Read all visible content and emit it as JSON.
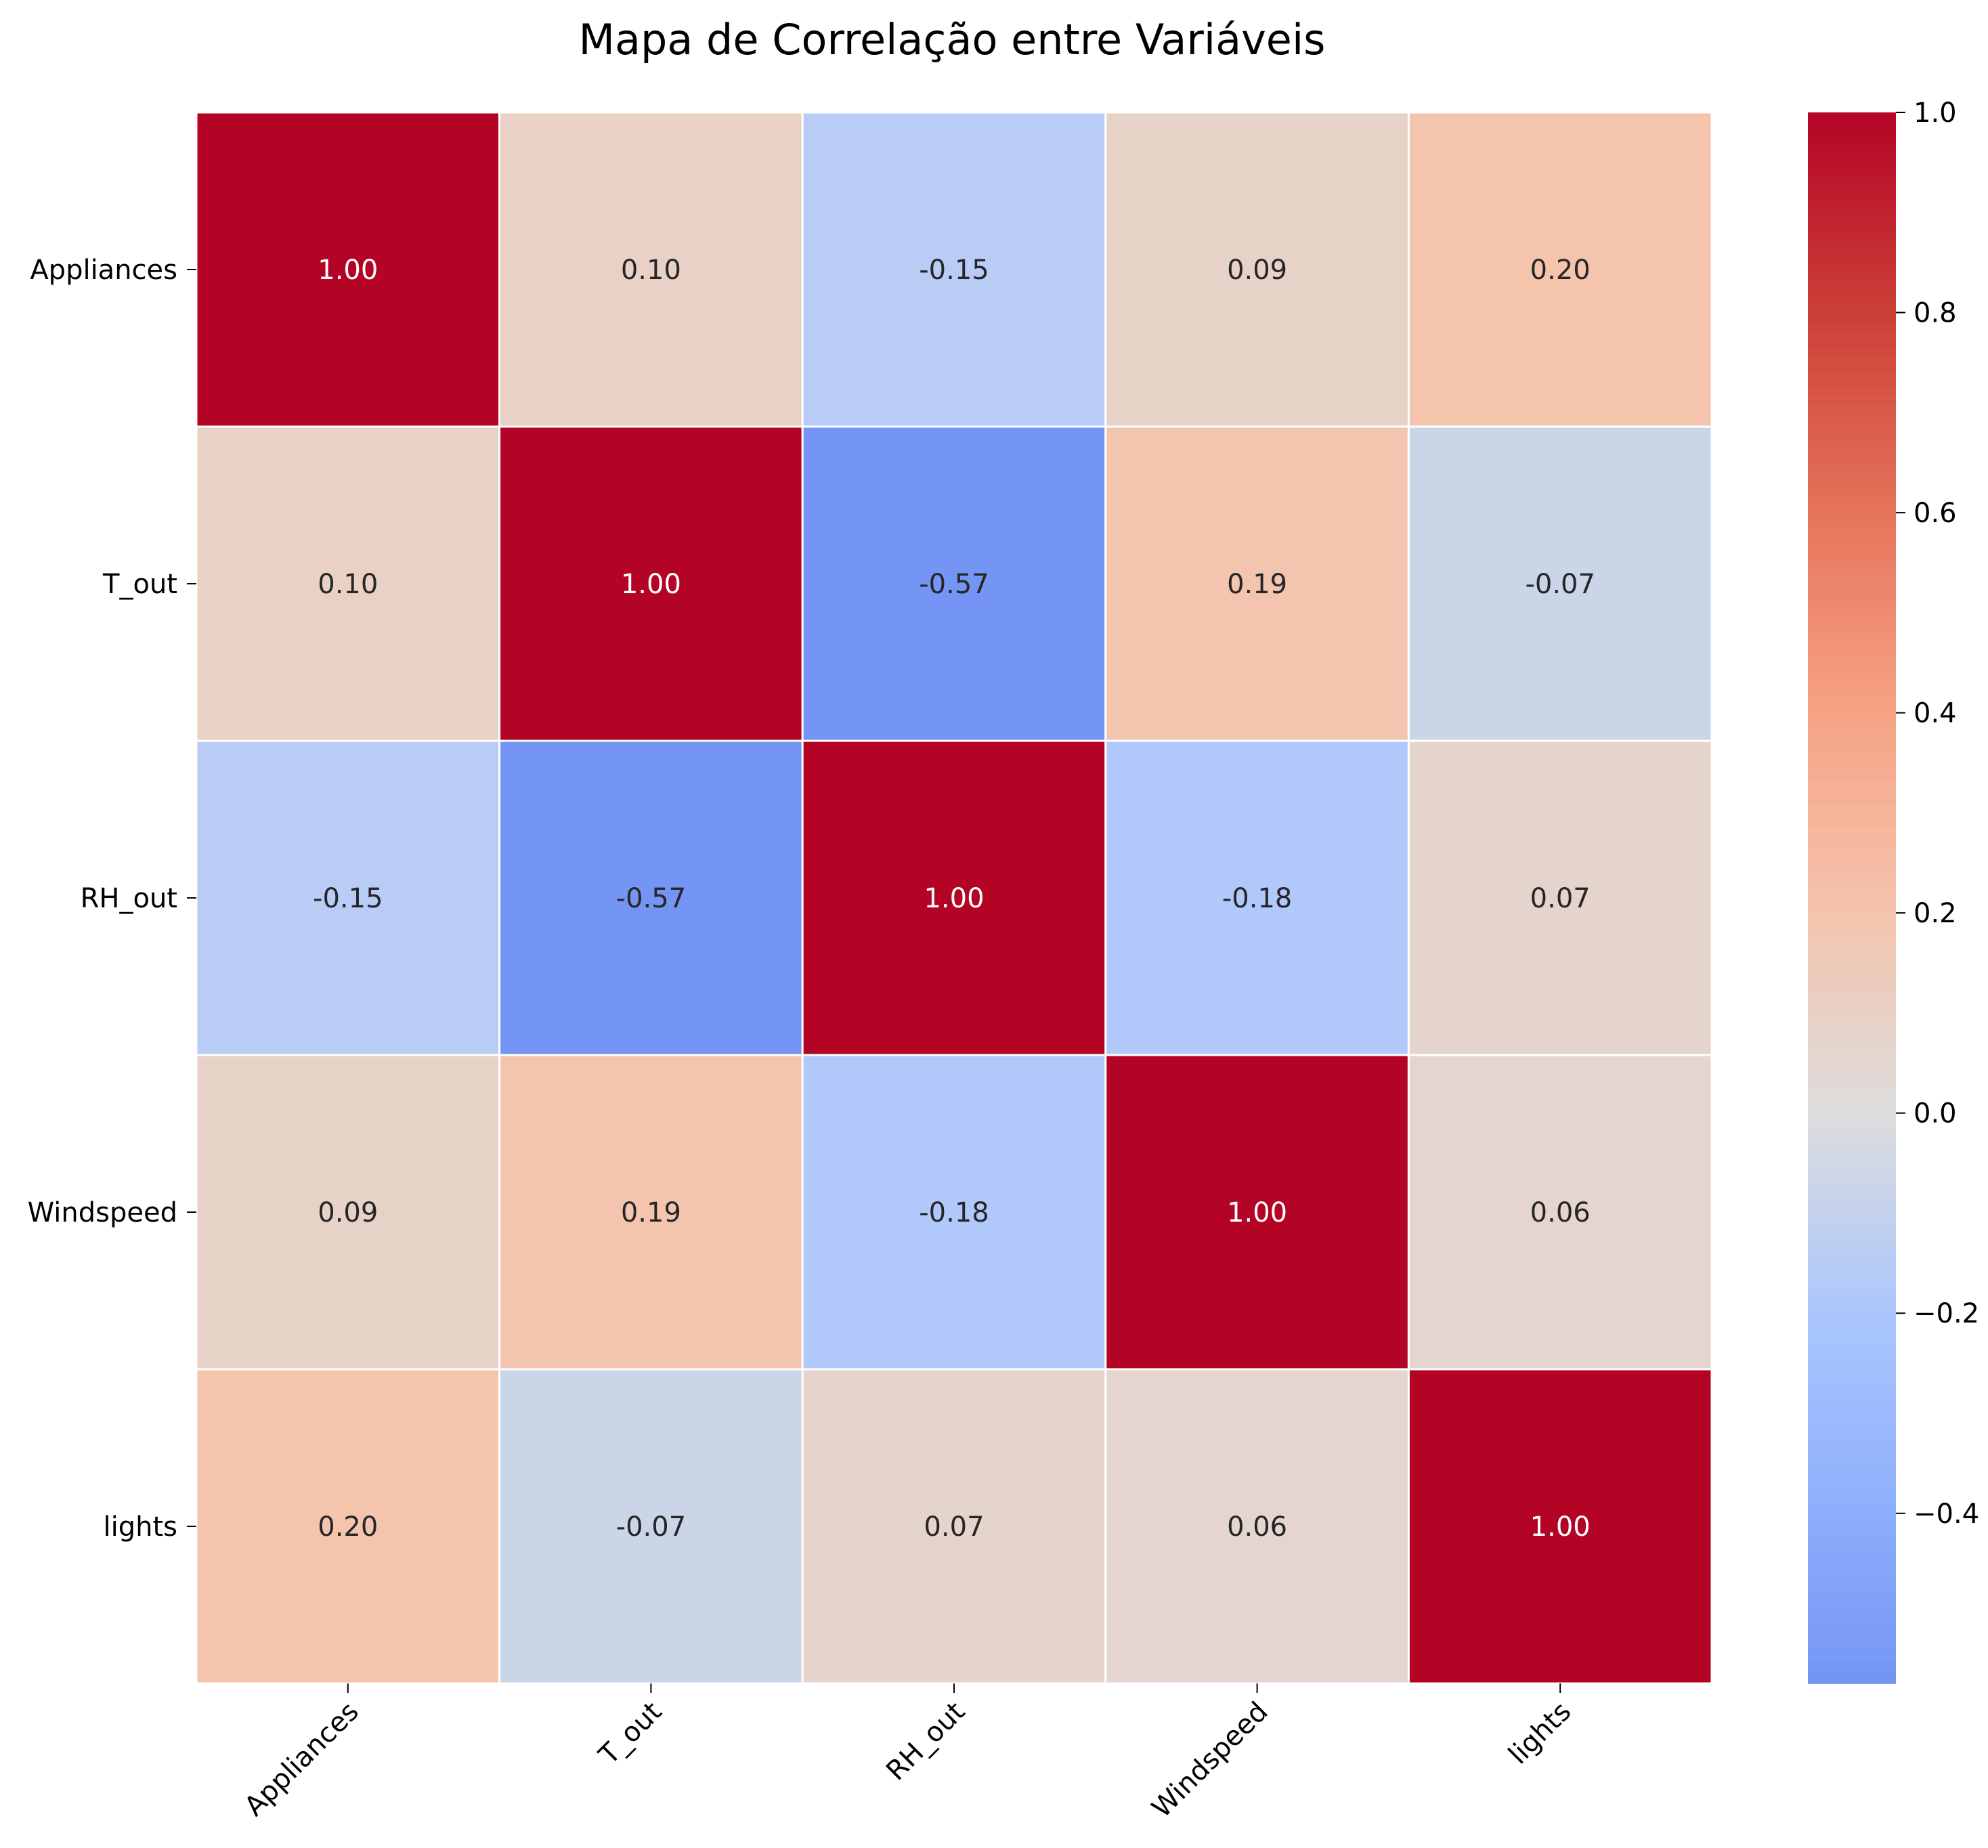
{
  "chart_data": {
    "type": "heatmap",
    "title": "Mapa de Correlação entre Variáveis",
    "xlabel": "",
    "ylabel": "",
    "x_categories": [
      "Appliances",
      "T_out",
      "RH_out",
      "Windspeed",
      "lights"
    ],
    "y_categories": [
      "Appliances",
      "T_out",
      "RH_out",
      "Windspeed",
      "lights"
    ],
    "values": [
      [
        1.0,
        0.1,
        -0.15,
        0.09,
        0.2
      ],
      [
        0.1,
        1.0,
        -0.57,
        0.19,
        -0.07
      ],
      [
        -0.15,
        -0.57,
        1.0,
        -0.18,
        0.07
      ],
      [
        0.09,
        0.19,
        -0.18,
        1.0,
        0.06
      ],
      [
        0.2,
        -0.07,
        0.07,
        0.06,
        1.0
      ]
    ],
    "value_format": "0.00",
    "colormap": "coolwarm",
    "center": 0.0,
    "vmin": -0.57,
    "vmax": 1.0,
    "colorbar": {
      "ticks": [
        1.0,
        0.8,
        0.6,
        0.4,
        0.2,
        0.0,
        -0.2,
        -0.4
      ],
      "tick_labels": [
        "1.0",
        "0.8",
        "0.6",
        "0.4",
        "0.2",
        "0.0",
        "−0.2",
        "−0.4"
      ]
    },
    "x_tick_rotation": 45,
    "grid": false,
    "legend": "colorbar-right"
  }
}
